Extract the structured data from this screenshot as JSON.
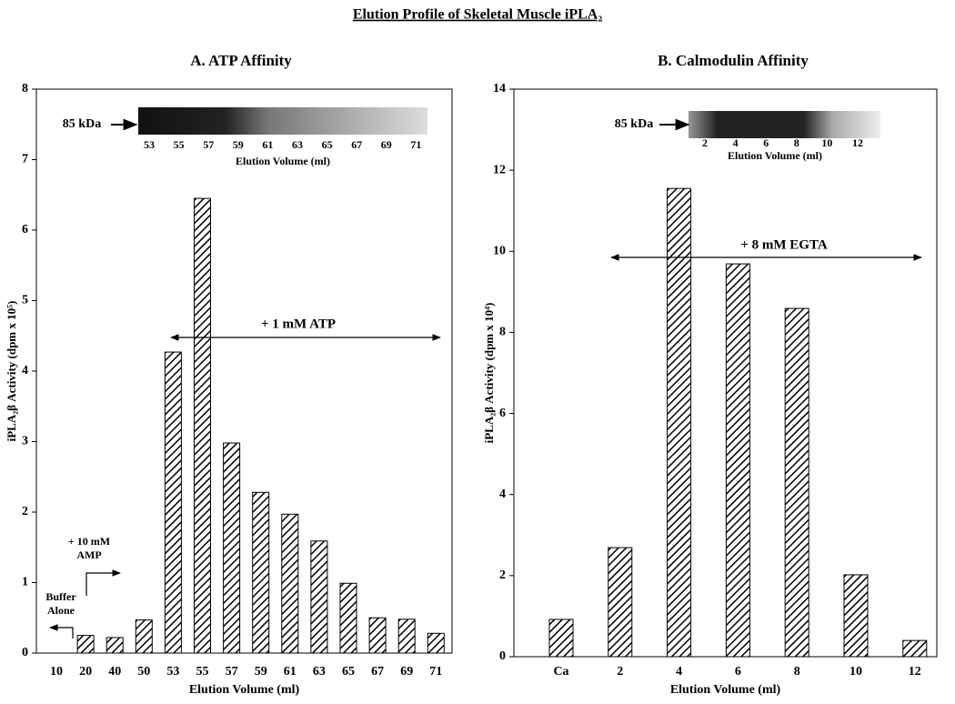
{
  "title": "Elution Profile of Skeletal Muscle iPLA₂",
  "chart_data": [
    {
      "type": "bar",
      "title": "A. ATP Affinity",
      "xlabel": "Elution Volume (ml)",
      "ylabel": "iPLA₂β Activity (dpm x 10⁵)",
      "categories": [
        "10",
        "20",
        "40",
        "50",
        "53",
        "55",
        "57",
        "59",
        "61",
        "63",
        "65",
        "67",
        "69",
        "71"
      ],
      "values": [
        0,
        0.25,
        0.22,
        0.47,
        4.27,
        6.45,
        2.98,
        2.28,
        1.97,
        1.59,
        0.99,
        0.5,
        0.48,
        0.28
      ],
      "color": "#000000",
      "ylim": [
        0,
        8
      ],
      "yticks": [
        0,
        1,
        2,
        3,
        4,
        5,
        6,
        7,
        8
      ],
      "annotations": [
        "+ 1 mM ATP",
        "+ 10 mM",
        "AMP",
        "Buffer",
        "Alone"
      ],
      "inset": {
        "marker": "85 kDa",
        "lanes": [
          "53",
          "55",
          "57",
          "59",
          "61",
          "63",
          "65",
          "67",
          "69",
          "71"
        ],
        "xlabel": "Elution Volume (ml)"
      }
    },
    {
      "type": "bar",
      "title": "B.  Calmodulin Affinity",
      "xlabel": "Elution Volume (ml)",
      "ylabel": "iPLA₂β Activity (dpm x 10⁴)",
      "categories": [
        "Ca",
        "2",
        "4",
        "6",
        "8",
        "10",
        "12"
      ],
      "values": [
        0.92,
        2.69,
        11.55,
        9.69,
        8.59,
        2.02,
        0.4
      ],
      "color": "#000000",
      "ylim": [
        0,
        14
      ],
      "yticks": [
        0,
        2,
        4,
        6,
        8,
        10,
        12,
        14
      ],
      "annotations": [
        "+ 8 mM EGTA"
      ],
      "inset": {
        "marker": "85 kDa",
        "lanes": [
          "2",
          "4",
          "6",
          "8",
          "10",
          "12"
        ],
        "xlabel": "Elution Volume (ml)"
      }
    }
  ]
}
